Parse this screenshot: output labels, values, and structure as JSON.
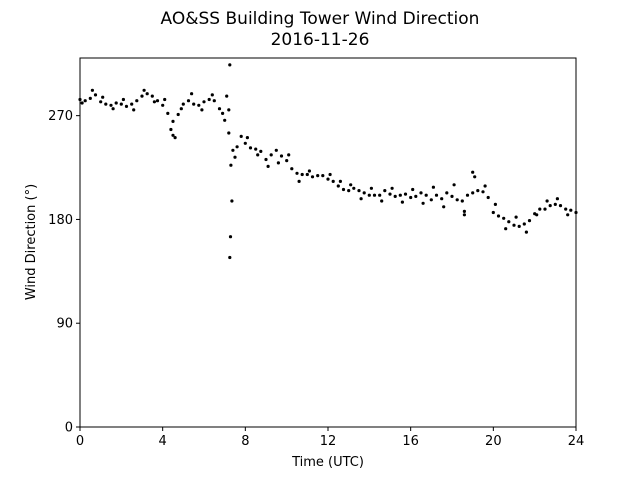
{
  "chart_data": {
    "type": "scatter",
    "title": "AO&SS Building Tower Wind Direction",
    "subtitle": "2016-11-26",
    "xlabel": "Time (UTC)",
    "ylabel": "Wind Direction (°)",
    "xlim": [
      0,
      24
    ],
    "ylim": [
      0,
      320
    ],
    "xticks": [
      0,
      4,
      8,
      12,
      16,
      20,
      24
    ],
    "yticks": [
      0,
      90,
      180,
      270
    ],
    "grid": false,
    "marker_color": "#000000",
    "points": [
      [
        0.0,
        284
      ],
      [
        0.25,
        283
      ],
      [
        0.5,
        285
      ],
      [
        0.75,
        288
      ],
      [
        1.0,
        282
      ],
      [
        1.25,
        280
      ],
      [
        1.5,
        279
      ],
      [
        1.75,
        281
      ],
      [
        2.0,
        280
      ],
      [
        2.25,
        278
      ],
      [
        2.5,
        280
      ],
      [
        2.75,
        283
      ],
      [
        3.0,
        287
      ],
      [
        3.25,
        289
      ],
      [
        3.5,
        287
      ],
      [
        3.75,
        283
      ],
      [
        4.0,
        279
      ],
      [
        4.25,
        272
      ],
      [
        4.5,
        265
      ],
      [
        4.75,
        271
      ],
      [
        5.0,
        280
      ],
      [
        5.25,
        283
      ],
      [
        5.5,
        280
      ],
      [
        5.75,
        279
      ],
      [
        6.0,
        282
      ],
      [
        6.25,
        284
      ],
      [
        6.5,
        283
      ],
      [
        6.75,
        276
      ],
      [
        7.0,
        266
      ],
      [
        7.2,
        255
      ],
      [
        7.4,
        240
      ],
      [
        7.6,
        243
      ],
      [
        7.8,
        252
      ],
      [
        8.0,
        246
      ],
      [
        8.25,
        242
      ],
      [
        8.5,
        241
      ],
      [
        8.75,
        239
      ],
      [
        9.0,
        232
      ],
      [
        9.25,
        236
      ],
      [
        9.5,
        240
      ],
      [
        9.75,
        235
      ],
      [
        10.0,
        231
      ],
      [
        10.25,
        224
      ],
      [
        10.5,
        220
      ],
      [
        10.75,
        219
      ],
      [
        11.0,
        219
      ],
      [
        11.25,
        217
      ],
      [
        11.5,
        218
      ],
      [
        11.75,
        218
      ],
      [
        12.0,
        215
      ],
      [
        12.25,
        213
      ],
      [
        12.5,
        209
      ],
      [
        12.75,
        206
      ],
      [
        13.0,
        205
      ],
      [
        13.25,
        207
      ],
      [
        13.5,
        205
      ],
      [
        13.75,
        203
      ],
      [
        14.0,
        201
      ],
      [
        14.25,
        201
      ],
      [
        14.5,
        201
      ],
      [
        14.75,
        205
      ],
      [
        15.0,
        202
      ],
      [
        15.25,
        200
      ],
      [
        15.5,
        201
      ],
      [
        15.75,
        202
      ],
      [
        16.0,
        199
      ],
      [
        16.25,
        200
      ],
      [
        16.5,
        203
      ],
      [
        16.75,
        201
      ],
      [
        17.0,
        197
      ],
      [
        17.25,
        201
      ],
      [
        17.5,
        198
      ],
      [
        17.75,
        203
      ],
      [
        18.0,
        200
      ],
      [
        18.25,
        197
      ],
      [
        18.5,
        196
      ],
      [
        18.75,
        201
      ],
      [
        19.0,
        203
      ],
      [
        19.25,
        205
      ],
      [
        19.5,
        204
      ],
      [
        19.75,
        199
      ],
      [
        20.0,
        186
      ],
      [
        20.25,
        183
      ],
      [
        20.5,
        181
      ],
      [
        20.75,
        178
      ],
      [
        21.0,
        175
      ],
      [
        21.25,
        174
      ],
      [
        21.5,
        176
      ],
      [
        21.75,
        179
      ],
      [
        22.0,
        185
      ],
      [
        22.25,
        189
      ],
      [
        22.5,
        189
      ],
      [
        22.75,
        192
      ],
      [
        23.0,
        193
      ],
      [
        23.25,
        192
      ],
      [
        23.5,
        189
      ],
      [
        23.75,
        188
      ],
      [
        24.0,
        186
      ],
      [
        0.1,
        281
      ],
      [
        0.6,
        292
      ],
      [
        1.1,
        286
      ],
      [
        1.6,
        276
      ],
      [
        2.1,
        284
      ],
      [
        2.6,
        275
      ],
      [
        3.1,
        292
      ],
      [
        3.6,
        282
      ],
      [
        4.1,
        284
      ],
      [
        4.4,
        258
      ],
      [
        4.6,
        251
      ],
      [
        4.9,
        276
      ],
      [
        5.4,
        289
      ],
      [
        5.9,
        275
      ],
      [
        6.4,
        288
      ],
      [
        6.9,
        272
      ],
      [
        7.3,
        227
      ],
      [
        7.5,
        234
      ],
      [
        8.1,
        251
      ],
      [
        8.6,
        236
      ],
      [
        9.1,
        226
      ],
      [
        9.6,
        229
      ],
      [
        10.1,
        236
      ],
      [
        10.6,
        213
      ],
      [
        11.1,
        222
      ],
      [
        12.1,
        219
      ],
      [
        12.6,
        213
      ],
      [
        13.1,
        210
      ],
      [
        13.6,
        198
      ],
      [
        14.1,
        207
      ],
      [
        14.6,
        196
      ],
      [
        15.1,
        207
      ],
      [
        15.6,
        195
      ],
      [
        16.1,
        206
      ],
      [
        16.6,
        194
      ],
      [
        17.1,
        208
      ],
      [
        17.6,
        191
      ],
      [
        18.1,
        210
      ],
      [
        18.6,
        187
      ],
      [
        19.1,
        217
      ],
      [
        19.6,
        209
      ],
      [
        20.1,
        193
      ],
      [
        20.6,
        172
      ],
      [
        21.1,
        182
      ],
      [
        21.6,
        169
      ],
      [
        22.1,
        184
      ],
      [
        22.6,
        196
      ],
      [
        23.1,
        198
      ],
      [
        23.6,
        184
      ],
      [
        7.1,
        287
      ],
      [
        7.2,
        275
      ],
      [
        7.25,
        314
      ],
      [
        7.28,
        165
      ],
      [
        7.25,
        147
      ],
      [
        7.35,
        196
      ],
      [
        4.5,
        253
      ],
      [
        18.6,
        184
      ],
      [
        19.0,
        221
      ]
    ]
  }
}
